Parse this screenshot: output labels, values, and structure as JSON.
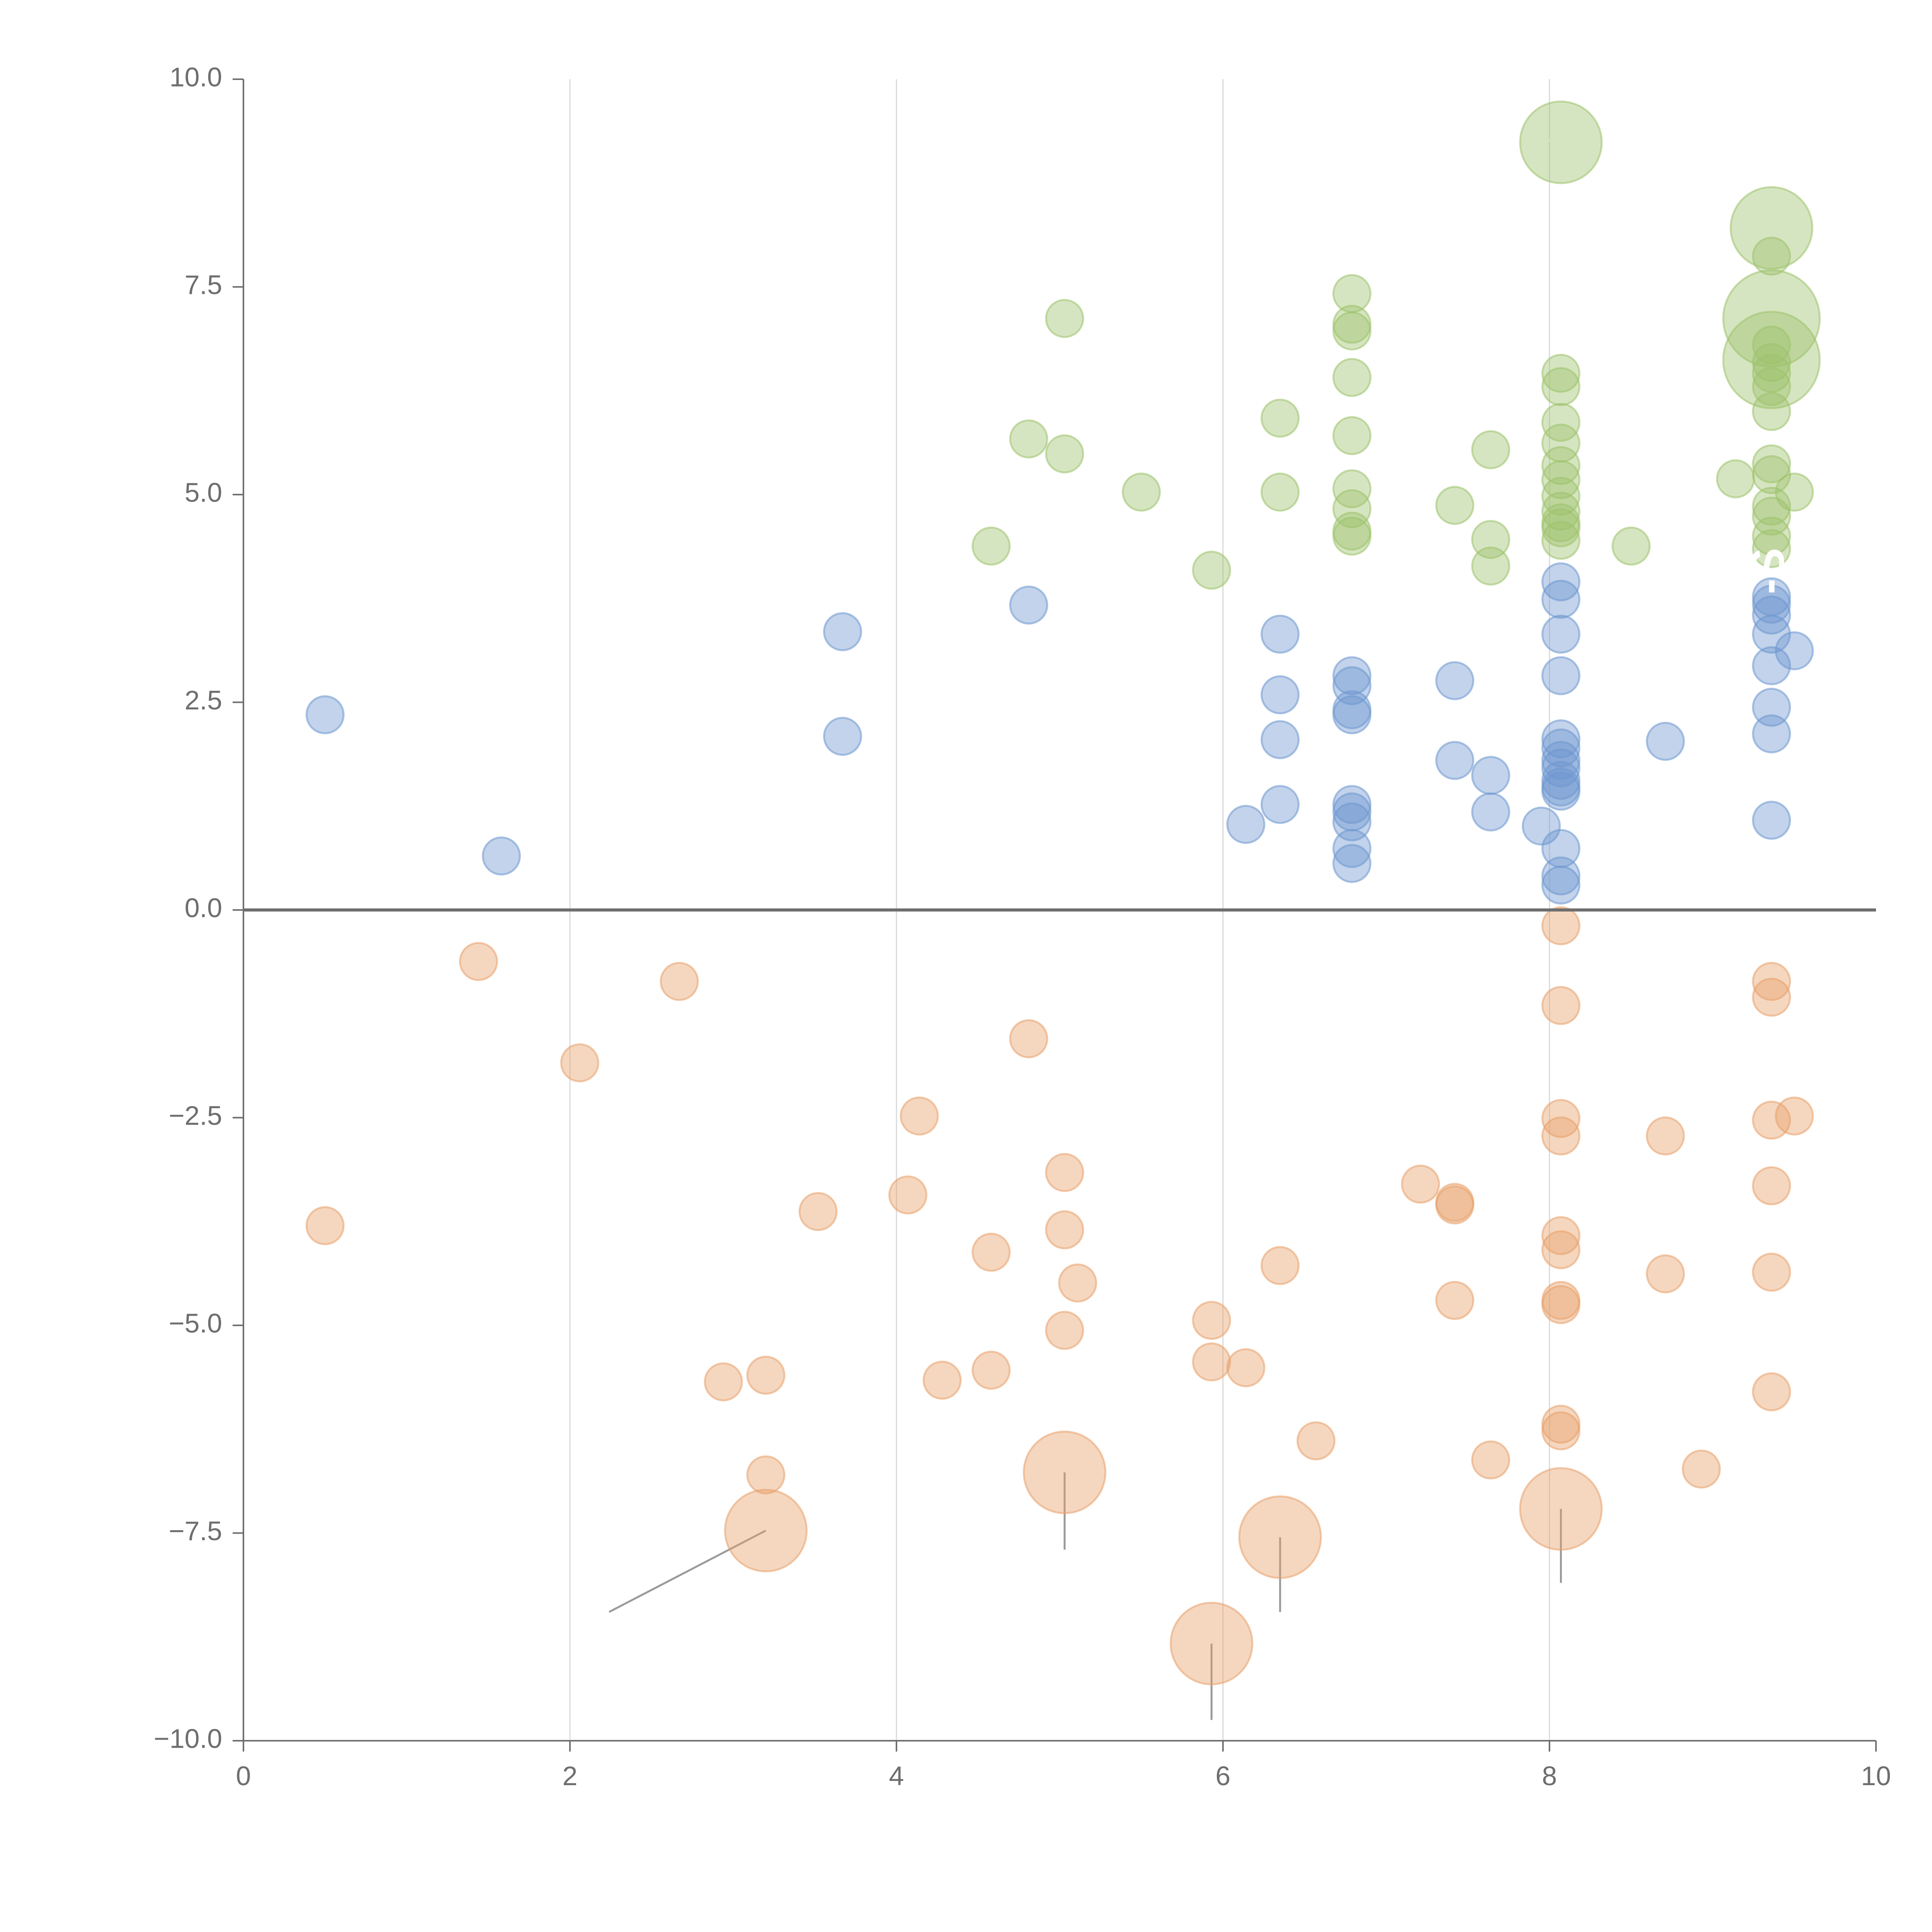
{
  "chart_data": {
    "type": "scatter",
    "title": "",
    "xlabel": "",
    "ylabel": "",
    "xlim": [
      0,
      10
    ],
    "ylim": [
      -10,
      10
    ],
    "x_ticks": [
      0,
      2,
      4,
      6,
      8,
      10
    ],
    "x_tick_labels": [
      "0",
      "2",
      "4",
      "6",
      "8",
      "10"
    ],
    "y_ticks": [
      10,
      7.5,
      5,
      2.5,
      0,
      -2.5,
      -5,
      -7.5,
      -10
    ],
    "y_tick_labels": [
      "10.0",
      "7.5",
      "5.0",
      "2.5",
      "0.0",
      "−2.5",
      "−5.0",
      "−7.5",
      "−10.0"
    ],
    "vertical_grid": true,
    "zero_line": true,
    "annotation_fragment": "-S",
    "series": [
      {
        "name": "green",
        "color": "#9dc26b",
        "points": [
          [
            5.03,
            7.12,
            1
          ],
          [
            4.81,
            5.67,
            1
          ],
          [
            5.03,
            5.49,
            1
          ],
          [
            5.5,
            5.03,
            1
          ],
          [
            4.58,
            4.38,
            1
          ],
          [
            5.93,
            4.09,
            1
          ],
          [
            6.35,
            5.92,
            1
          ],
          [
            6.35,
            5.03,
            1
          ],
          [
            6.79,
            7.42,
            1
          ],
          [
            6.79,
            7.05,
            1
          ],
          [
            6.79,
            6.97,
            1
          ],
          [
            6.79,
            6.41,
            1
          ],
          [
            6.79,
            5.71,
            1
          ],
          [
            6.79,
            5.07,
            1
          ],
          [
            6.79,
            4.83,
            1
          ],
          [
            6.79,
            4.56,
            1
          ],
          [
            6.79,
            4.5,
            1
          ],
          [
            7.42,
            4.87,
            1
          ],
          [
            7.64,
            5.54,
            1
          ],
          [
            7.64,
            4.46,
            1
          ],
          [
            7.64,
            4.14,
            1
          ],
          [
            8.07,
            9.24,
            2.2
          ],
          [
            8.07,
            6.46,
            1
          ],
          [
            8.07,
            6.3,
            1
          ],
          [
            8.07,
            5.87,
            1
          ],
          [
            8.07,
            5.62,
            1
          ],
          [
            8.07,
            5.35,
            1
          ],
          [
            8.07,
            5.18,
            1
          ],
          [
            8.07,
            4.98,
            1
          ],
          [
            8.07,
            4.8,
            1
          ],
          [
            8.07,
            4.6,
            1
          ],
          [
            8.07,
            4.66,
            1
          ],
          [
            8.07,
            4.45,
            1
          ],
          [
            8.5,
            4.38,
            1
          ],
          [
            9.36,
            8.21,
            2.2
          ],
          [
            9.36,
            7.87,
            1
          ],
          [
            9.36,
            7.12,
            2.6
          ],
          [
            9.36,
            6.62,
            2.6
          ],
          [
            9.36,
            6.8,
            1
          ],
          [
            9.36,
            6.59,
            1
          ],
          [
            9.36,
            6.46,
            1
          ],
          [
            9.36,
            6.3,
            1
          ],
          [
            9.36,
            6.0,
            1
          ],
          [
            9.36,
            5.37,
            1
          ],
          [
            9.36,
            5.24,
            1
          ],
          [
            9.36,
            4.86,
            1
          ],
          [
            9.36,
            4.74,
            1
          ],
          [
            9.36,
            4.5,
            1
          ],
          [
            9.36,
            4.35,
            1
          ],
          [
            9.14,
            5.19,
            1
          ],
          [
            9.5,
            5.03,
            1
          ]
        ]
      },
      {
        "name": "blue",
        "color": "#6d97cf",
        "points": [
          [
            0.5,
            2.35,
            1
          ],
          [
            1.58,
            0.65,
            1
          ],
          [
            3.67,
            3.35,
            1
          ],
          [
            3.67,
            2.09,
            1
          ],
          [
            4.81,
            3.67,
            1
          ],
          [
            6.14,
            1.03,
            1
          ],
          [
            6.35,
            3.32,
            1
          ],
          [
            6.35,
            2.59,
            1
          ],
          [
            6.35,
            2.05,
            1
          ],
          [
            6.35,
            1.27,
            1
          ],
          [
            6.79,
            2.82,
            1
          ],
          [
            6.79,
            2.7,
            1
          ],
          [
            6.79,
            2.41,
            1
          ],
          [
            6.79,
            2.35,
            1
          ],
          [
            6.79,
            1.27,
            1
          ],
          [
            6.79,
            1.18,
            1
          ],
          [
            6.79,
            1.06,
            1
          ],
          [
            6.79,
            0.74,
            1
          ],
          [
            6.79,
            0.56,
            1
          ],
          [
            7.42,
            2.76,
            1
          ],
          [
            7.42,
            1.8,
            1
          ],
          [
            7.64,
            1.62,
            1
          ],
          [
            7.64,
            1.18,
            1
          ],
          [
            7.95,
            1.01,
            1
          ],
          [
            8.07,
            3.95,
            1
          ],
          [
            8.07,
            3.74,
            1
          ],
          [
            8.07,
            3.32,
            1
          ],
          [
            8.07,
            2.82,
            1
          ],
          [
            8.07,
            2.06,
            1
          ],
          [
            8.07,
            1.95,
            1
          ],
          [
            8.07,
            1.8,
            1
          ],
          [
            8.07,
            1.71,
            1
          ],
          [
            8.07,
            1.56,
            1
          ],
          [
            8.07,
            1.48,
            1
          ],
          [
            8.07,
            1.43,
            1
          ],
          [
            8.07,
            0.74,
            1
          ],
          [
            8.07,
            0.41,
            1
          ],
          [
            8.07,
            0.3,
            1
          ],
          [
            8.71,
            2.03,
            1
          ],
          [
            9.36,
            3.77,
            1
          ],
          [
            9.36,
            3.68,
            1
          ],
          [
            9.36,
            3.55,
            1
          ],
          [
            9.36,
            3.32,
            1
          ],
          [
            9.36,
            2.94,
            1
          ],
          [
            9.36,
            2.44,
            1
          ],
          [
            9.36,
            2.12,
            1
          ],
          [
            9.36,
            1.08,
            1
          ],
          [
            9.5,
            3.12,
            1
          ]
        ]
      },
      {
        "name": "orange",
        "color": "#e8a06a",
        "points": [
          [
            0.5,
            -3.8,
            1
          ],
          [
            1.44,
            -0.62,
            1
          ],
          [
            2.06,
            -1.84,
            1
          ],
          [
            2.67,
            -0.86,
            1
          ],
          [
            2.94,
            -5.68,
            1
          ],
          [
            3.2,
            -5.6,
            1
          ],
          [
            3.2,
            -6.8,
            1
          ],
          [
            3.2,
            -7.47,
            2.2
          ],
          [
            3.52,
            -3.63,
            1
          ],
          [
            4.07,
            -3.43,
            1
          ],
          [
            4.14,
            -2.48,
            1
          ],
          [
            4.28,
            -5.66,
            1
          ],
          [
            4.58,
            -4.12,
            1
          ],
          [
            4.58,
            -5.54,
            1
          ],
          [
            4.81,
            -1.55,
            1
          ],
          [
            5.03,
            -3.16,
            1
          ],
          [
            5.03,
            -3.85,
            1
          ],
          [
            5.03,
            -5.06,
            1
          ],
          [
            5.03,
            -6.77,
            2.2
          ],
          [
            5.11,
            -4.49,
            1
          ],
          [
            5.93,
            -4.94,
            1
          ],
          [
            5.93,
            -5.44,
            1
          ],
          [
            5.93,
            -8.83,
            2.2
          ],
          [
            6.14,
            -5.51,
            1
          ],
          [
            6.35,
            -4.28,
            1
          ],
          [
            6.35,
            -7.55,
            2.2
          ],
          [
            6.57,
            -6.39,
            1
          ],
          [
            7.21,
            -3.3,
            1
          ],
          [
            7.42,
            -3.52,
            1
          ],
          [
            7.42,
            -3.55,
            1
          ],
          [
            7.42,
            -4.7,
            1
          ],
          [
            7.64,
            -6.62,
            1
          ],
          [
            8.07,
            -0.19,
            1
          ],
          [
            8.07,
            -1.15,
            1
          ],
          [
            8.07,
            -2.51,
            1
          ],
          [
            8.07,
            -2.72,
            1
          ],
          [
            8.07,
            -3.92,
            1
          ],
          [
            8.07,
            -4.09,
            1
          ],
          [
            8.07,
            -4.7,
            1
          ],
          [
            8.07,
            -4.75,
            1
          ],
          [
            8.07,
            -6.19,
            1
          ],
          [
            8.07,
            -6.27,
            1
          ],
          [
            8.07,
            -7.21,
            2.2
          ],
          [
            8.71,
            -2.72,
            1
          ],
          [
            8.71,
            -4.38,
            1
          ],
          [
            8.93,
            -6.73,
            1
          ],
          [
            9.36,
            -0.86,
            1
          ],
          [
            9.36,
            -1.05,
            1
          ],
          [
            9.36,
            -2.53,
            1
          ],
          [
            9.36,
            -3.32,
            1
          ],
          [
            9.36,
            -4.36,
            1
          ],
          [
            9.36,
            -5.8,
            1
          ],
          [
            9.5,
            -2.48,
            1
          ]
        ]
      }
    ],
    "leader_lines": [
      {
        "from": [
          3.2,
          -7.47
        ],
        "to": [
          2.24,
          -8.45
        ],
        "style": "dark"
      },
      {
        "from": [
          5.03,
          -6.77
        ],
        "to": [
          5.03,
          -7.7
        ],
        "style": "dark"
      },
      {
        "from": [
          6.35,
          -7.55
        ],
        "to": [
          6.35,
          -8.45
        ],
        "style": "dark"
      },
      {
        "from": [
          5.93,
          -8.83
        ],
        "to": [
          5.93,
          -9.75
        ],
        "style": "dark"
      },
      {
        "from": [
          8.07,
          -7.21
        ],
        "to": [
          8.07,
          -8.1
        ],
        "style": "dark"
      },
      {
        "from": [
          8.07,
          9.24
        ],
        "to": [
          7.94,
          9.28
        ],
        "style": "light"
      },
      {
        "from": [
          9.36,
          8.21
        ],
        "to": [
          9.36,
          8.58
        ],
        "style": "light"
      },
      {
        "from": [
          9.36,
          6.6
        ],
        "to": [
          9.36,
          4.7
        ],
        "style": "light"
      }
    ]
  }
}
